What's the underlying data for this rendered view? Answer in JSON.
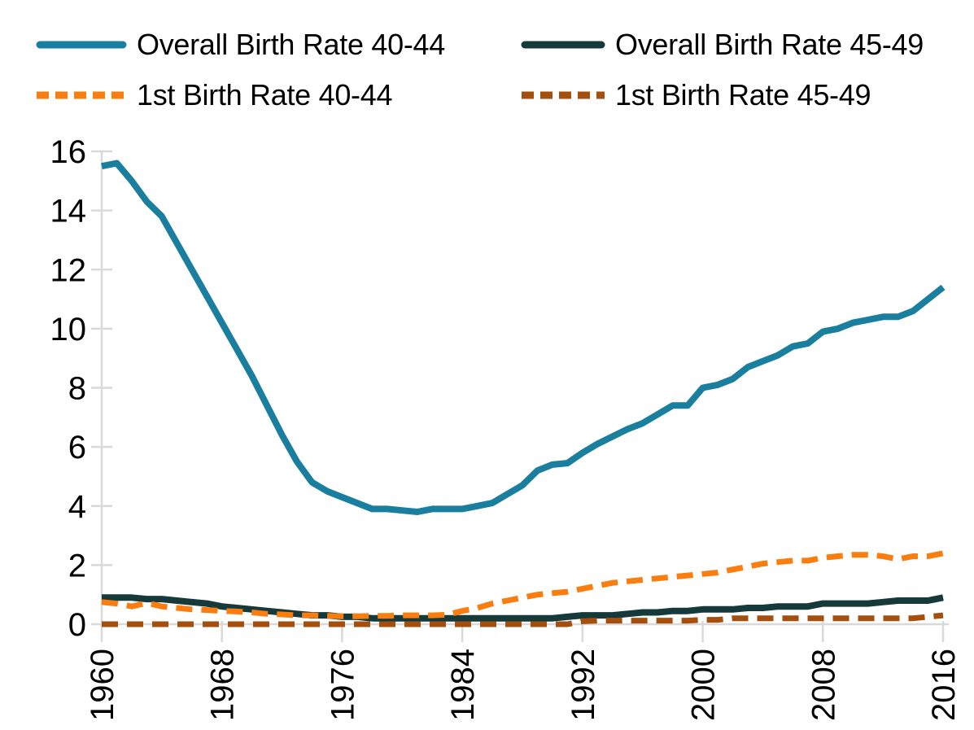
{
  "legend": {
    "items": [
      {
        "label": "Overall Birth Rate 40-44",
        "color": "#1A7E9E",
        "dash": false
      },
      {
        "label": "Overall Birth Rate 45-49",
        "color": "#16393A",
        "dash": false
      },
      {
        "label": "1st Birth Rate 40-44",
        "color": "#FA7D0F",
        "dash": true
      },
      {
        "label": "1st Birth Rate 45-49",
        "color": "#A44F0E",
        "dash": true
      }
    ]
  },
  "chart_data": {
    "type": "line",
    "title": "",
    "xlabel": "",
    "ylabel": "",
    "grid": false,
    "legend_position": "top",
    "ylim": [
      0,
      16
    ],
    "y_ticks": [
      0,
      2,
      4,
      6,
      8,
      10,
      12,
      14,
      16
    ],
    "x_ticks": [
      1960,
      1968,
      1976,
      1984,
      1992,
      2000,
      2008,
      2016
    ],
    "axis_color": "#D9D9D9",
    "tick_label_color": "#000000",
    "x": [
      1960,
      1961,
      1962,
      1963,
      1964,
      1965,
      1966,
      1967,
      1968,
      1969,
      1970,
      1971,
      1972,
      1973,
      1974,
      1975,
      1976,
      1977,
      1978,
      1979,
      1980,
      1981,
      1982,
      1983,
      1984,
      1985,
      1986,
      1987,
      1988,
      1989,
      1990,
      1991,
      1992,
      1993,
      1994,
      1995,
      1996,
      1997,
      1998,
      1999,
      2000,
      2001,
      2002,
      2003,
      2004,
      2005,
      2006,
      2007,
      2008,
      2009,
      2010,
      2011,
      2012,
      2013,
      2014,
      2015,
      2016
    ],
    "series": [
      {
        "name": "Overall Birth Rate 40-44",
        "color": "#1A7E9E",
        "dash": false,
        "values": [
          15.5,
          15.6,
          15.0,
          14.3,
          13.8,
          12.9,
          12.0,
          11.1,
          10.2,
          9.3,
          8.4,
          7.4,
          6.4,
          5.5,
          4.8,
          4.5,
          4.3,
          4.1,
          3.9,
          3.9,
          3.85,
          3.8,
          3.9,
          3.9,
          3.9,
          4.0,
          4.1,
          4.4,
          4.7,
          5.2,
          5.4,
          5.45,
          5.8,
          6.1,
          6.35,
          6.6,
          6.8,
          7.1,
          7.4,
          7.4,
          8.0,
          8.1,
          8.3,
          8.7,
          8.9,
          9.1,
          9.4,
          9.5,
          9.9,
          10.0,
          10.2,
          10.3,
          10.4,
          10.4,
          10.6,
          11.0,
          11.4
        ]
      },
      {
        "name": "Overall Birth Rate 45-49",
        "color": "#16393A",
        "dash": false,
        "values": [
          0.9,
          0.9,
          0.9,
          0.85,
          0.85,
          0.8,
          0.75,
          0.7,
          0.6,
          0.55,
          0.5,
          0.45,
          0.4,
          0.35,
          0.3,
          0.3,
          0.25,
          0.25,
          0.2,
          0.2,
          0.2,
          0.2,
          0.2,
          0.2,
          0.2,
          0.2,
          0.2,
          0.2,
          0.2,
          0.2,
          0.2,
          0.25,
          0.3,
          0.3,
          0.3,
          0.35,
          0.4,
          0.4,
          0.45,
          0.45,
          0.5,
          0.5,
          0.5,
          0.55,
          0.55,
          0.6,
          0.6,
          0.6,
          0.7,
          0.7,
          0.7,
          0.7,
          0.75,
          0.8,
          0.8,
          0.8,
          0.9
        ]
      },
      {
        "name": "1st Birth Rate 40-44",
        "color": "#FA7D0F",
        "dash": true,
        "values": [
          0.75,
          0.7,
          0.6,
          0.72,
          0.6,
          0.55,
          0.5,
          0.48,
          0.45,
          0.43,
          0.4,
          0.35,
          0.33,
          0.3,
          0.3,
          0.28,
          0.27,
          0.27,
          0.28,
          0.28,
          0.3,
          0.3,
          0.3,
          0.32,
          0.45,
          0.55,
          0.7,
          0.8,
          0.9,
          1.0,
          1.05,
          1.1,
          1.2,
          1.3,
          1.4,
          1.45,
          1.5,
          1.55,
          1.6,
          1.65,
          1.7,
          1.75,
          1.85,
          1.95,
          2.05,
          2.1,
          2.15,
          2.15,
          2.25,
          2.3,
          2.35,
          2.35,
          2.3,
          2.2,
          2.3,
          2.3,
          2.4
        ]
      },
      {
        "name": "1st Birth Rate 45-49",
        "color": "#A44F0E",
        "dash": true,
        "values": [
          0,
          0,
          0,
          0,
          0,
          0,
          0,
          0,
          0,
          0,
          0,
          0,
          0,
          0,
          0,
          0,
          0,
          0,
          0,
          0,
          0,
          0,
          0,
          0,
          0,
          0,
          0,
          0,
          0,
          0,
          0,
          0,
          0.1,
          0.12,
          0.12,
          0.12,
          0.12,
          0.12,
          0.12,
          0.12,
          0.15,
          0.15,
          0.2,
          0.2,
          0.2,
          0.2,
          0.2,
          0.2,
          0.2,
          0.2,
          0.2,
          0.2,
          0.2,
          0.2,
          0.2,
          0.25,
          0.3
        ]
      }
    ]
  }
}
